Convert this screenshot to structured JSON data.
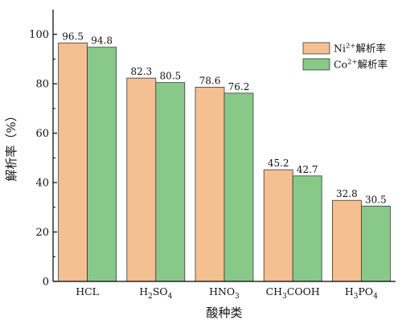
{
  "chart_data": {
    "type": "bar",
    "categories": [
      [
        "HCL"
      ],
      [
        "H",
        {
          "sub": "2"
        },
        "SO",
        {
          "sub": "4"
        }
      ],
      [
        "HNO",
        {
          "sub": "3"
        }
      ],
      [
        "CH",
        {
          "sub": "3"
        },
        "COOH"
      ],
      [
        "H",
        {
          "sub": "3"
        },
        "PO",
        {
          "sub": "4"
        }
      ]
    ],
    "series": [
      {
        "name": [
          "Ni",
          {
            "sup": "2+"
          },
          "解析率"
        ],
        "values": [
          96.5,
          82.3,
          78.6,
          45.2,
          32.8
        ],
        "color": "#f4bf91"
      },
      {
        "name": [
          "Co",
          {
            "sup": "2+"
          },
          "解析率"
        ],
        "values": [
          94.8,
          80.5,
          76.2,
          42.7,
          30.5
        ],
        "color": "#88c98a"
      }
    ],
    "xlabel": "酸种类",
    "ylabel": "解析率（%）",
    "ylim": [
      0,
      110
    ],
    "yticks": [
      0,
      20,
      40,
      60,
      80,
      100
    ],
    "grid": false,
    "legend_position": "top-right",
    "data_labels": true
  }
}
